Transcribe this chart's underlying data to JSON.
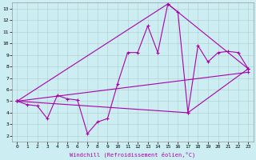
{
  "xlabel": "Windchill (Refroidissement éolien,°C)",
  "xlim": [
    -0.5,
    23.5
  ],
  "ylim": [
    1.5,
    13.5
  ],
  "xticks": [
    0,
    1,
    2,
    3,
    4,
    5,
    6,
    7,
    8,
    9,
    10,
    11,
    12,
    13,
    14,
    15,
    16,
    17,
    18,
    19,
    20,
    21,
    22,
    23
  ],
  "yticks": [
    2,
    3,
    4,
    5,
    6,
    7,
    8,
    9,
    10,
    11,
    12,
    13
  ],
  "bg_color": "#cceef2",
  "grid_color": "#b0cccc",
  "line_color": "#aa00aa",
  "line1_x": [
    0,
    1,
    2,
    3,
    4,
    5,
    6,
    7,
    8,
    9,
    10,
    11,
    12,
    13,
    14,
    15,
    16,
    17,
    18,
    19,
    20,
    21,
    22,
    23
  ],
  "line1_y": [
    5.0,
    4.7,
    4.6,
    3.5,
    5.5,
    5.2,
    5.1,
    2.2,
    3.2,
    3.5,
    6.5,
    9.2,
    9.2,
    11.5,
    9.2,
    13.4,
    12.7,
    4.0,
    9.8,
    8.4,
    9.2,
    9.3,
    9.2,
    7.8
  ],
  "line2_x": [
    0,
    23
  ],
  "line2_y": [
    5.0,
    7.5
  ],
  "line3_x": [
    0,
    15,
    23
  ],
  "line3_y": [
    5.0,
    13.4,
    7.8
  ],
  "line4_x": [
    0,
    17,
    23
  ],
  "line4_y": [
    5.0,
    4.0,
    7.8
  ]
}
